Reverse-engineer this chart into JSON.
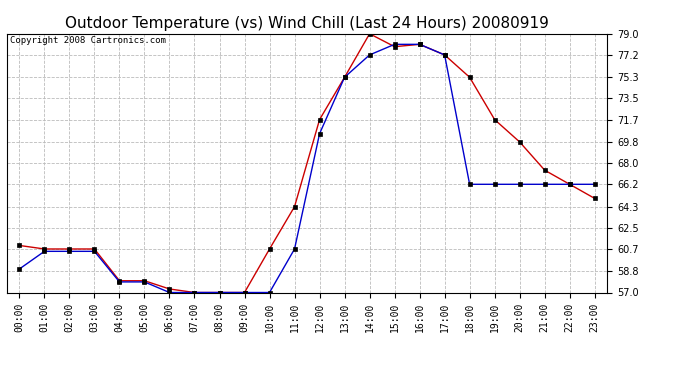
{
  "title": "Outdoor Temperature (vs) Wind Chill (Last 24 Hours) 20080919",
  "copyright": "Copyright 2008 Cartronics.com",
  "hours": [
    "00:00",
    "01:00",
    "02:00",
    "03:00",
    "04:00",
    "05:00",
    "06:00",
    "07:00",
    "08:00",
    "09:00",
    "10:00",
    "11:00",
    "12:00",
    "13:00",
    "14:00",
    "15:00",
    "16:00",
    "17:00",
    "18:00",
    "19:00",
    "20:00",
    "21:00",
    "22:00",
    "23:00"
  ],
  "temp": [
    61.0,
    60.7,
    60.7,
    60.7,
    58.0,
    58.0,
    57.3,
    57.0,
    57.0,
    57.0,
    60.7,
    64.3,
    71.7,
    75.3,
    79.0,
    77.9,
    78.1,
    77.2,
    75.3,
    71.7,
    69.8,
    67.4,
    66.2,
    65.0
  ],
  "wind_chill": [
    59.0,
    60.5,
    60.5,
    60.5,
    57.9,
    57.9,
    57.0,
    57.0,
    57.0,
    57.0,
    57.0,
    60.7,
    70.5,
    75.3,
    77.2,
    78.1,
    78.1,
    77.2,
    66.2,
    66.2,
    66.2,
    66.2,
    66.2,
    66.2
  ],
  "temp_color": "#cc0000",
  "wind_chill_color": "#0000cc",
  "ylim_min": 57.0,
  "ylim_max": 79.0,
  "yticks": [
    57.0,
    58.8,
    60.7,
    62.5,
    64.3,
    66.2,
    68.0,
    69.8,
    71.7,
    73.5,
    75.3,
    77.2,
    79.0
  ],
  "background_color": "#ffffff",
  "grid_color": "#bbbbbb",
  "title_fontsize": 11,
  "copyright_fontsize": 6.5,
  "marker": "s",
  "marker_size": 2.5,
  "tick_fontsize": 7,
  "ytick_fontsize": 7
}
